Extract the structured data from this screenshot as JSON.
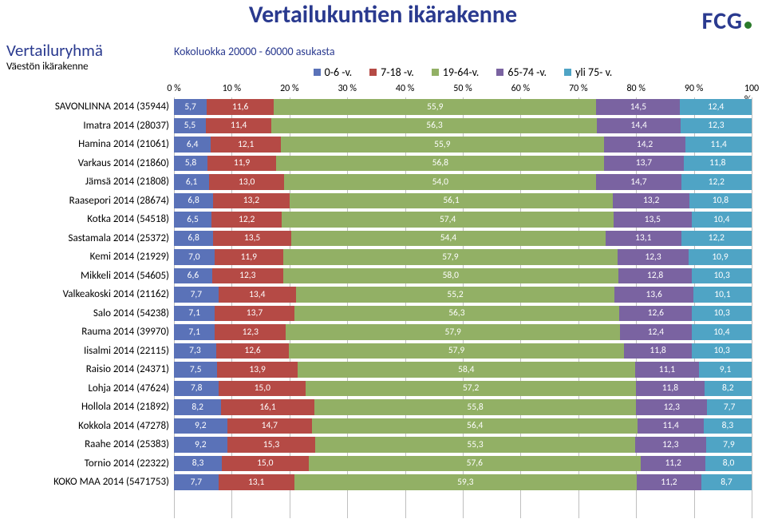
{
  "title": "Vertailukuntien ikärakenne",
  "title_color": "#2a3a8f",
  "logo_text": "FCG",
  "logo_color": "#2a3a8f",
  "logo_dot_color": "#2a7a2a",
  "subheader_group": "Vertailuryhmä",
  "subheader_group_color": "#2a3a8f",
  "subheader_sub": "Väestön ikärakenne",
  "subheader_sub_color": "#000000",
  "sizeclass": "Kokoluokka 20000 - 60000 asukasta",
  "sizeclass_color": "#2a3a8f",
  "legend": [
    {
      "label": "0-6 -v.",
      "color": "#5a72b8"
    },
    {
      "label": "7-18 -v.",
      "color": "#b54a45"
    },
    {
      "label": "19-64-v.",
      "color": "#92b065"
    },
    {
      "label": "65-74 -v.",
      "color": "#7a63a1"
    },
    {
      "label": "yli 75- v.",
      "color": "#4fa4c5"
    }
  ],
  "axis": {
    "ticks": [
      "0 %",
      "10 %",
      "20 %",
      "30 %",
      "40 %",
      "50 %",
      "60 %",
      "70 %",
      "80 %",
      "90 %",
      "100 %"
    ],
    "min": 0,
    "max": 100,
    "grid_color": "#bfbfbf",
    "tick_font": 12
  },
  "series_colors": [
    "#5a72b8",
    "#b54a45",
    "#92b065",
    "#7a63a1",
    "#4fa4c5"
  ],
  "value_font_color": "#ffffff",
  "label_font_size": 13,
  "row_height": 23.5,
  "rows": [
    {
      "label": "SAVONLINNA 2014 (35944)",
      "values": [
        "5,7",
        "11,6",
        "55,9",
        "14,5",
        "12,4"
      ]
    },
    {
      "label": "Imatra 2014 (28037)",
      "values": [
        "5,5",
        "11,4",
        "56,3",
        "14,4",
        "12,3"
      ]
    },
    {
      "label": "Hamina 2014 (21061)",
      "values": [
        "6,4",
        "12,1",
        "55,9",
        "14,2",
        "11,4"
      ]
    },
    {
      "label": "Varkaus 2014 (21860)",
      "values": [
        "5,8",
        "11,9",
        "56,8",
        "13,7",
        "11,8"
      ]
    },
    {
      "label": "Jämsä 2014 (21808)",
      "values": [
        "6,1",
        "13,0",
        "54,0",
        "14,7",
        "12,2"
      ]
    },
    {
      "label": "Raasepori 2014 (28674)",
      "values": [
        "6,8",
        "13,2",
        "56,1",
        "13,2",
        "10,8"
      ]
    },
    {
      "label": "Kotka 2014 (54518)",
      "values": [
        "6,5",
        "12,2",
        "57,4",
        "13,5",
        "10,4"
      ]
    },
    {
      "label": "Sastamala 2014 (25372)",
      "values": [
        "6,8",
        "13,5",
        "54,4",
        "13,1",
        "12,2"
      ]
    },
    {
      "label": "Kemi 2014 (21929)",
      "values": [
        "7,0",
        "11,9",
        "57,9",
        "12,3",
        "10,9"
      ]
    },
    {
      "label": "Mikkeli 2014 (54605)",
      "values": [
        "6,6",
        "12,3",
        "58,0",
        "12,8",
        "10,3"
      ]
    },
    {
      "label": "Valkeakoski 2014 (21162)",
      "values": [
        "7,7",
        "13,4",
        "55,2",
        "13,6",
        "10,1"
      ]
    },
    {
      "label": "Salo 2014 (54238)",
      "values": [
        "7,1",
        "13,7",
        "56,3",
        "12,6",
        "10,3"
      ]
    },
    {
      "label": "Rauma 2014 (39970)",
      "values": [
        "7,1",
        "12,3",
        "57,9",
        "12,4",
        "10,4"
      ]
    },
    {
      "label": "Iisalmi 2014 (22115)",
      "values": [
        "7,3",
        "12,6",
        "57,9",
        "11,8",
        "10,3"
      ]
    },
    {
      "label": "Raisio 2014 (24371)",
      "values": [
        "7,5",
        "13,9",
        "58,4",
        "11,1",
        "9,1"
      ]
    },
    {
      "label": "Lohja 2014 (47624)",
      "values": [
        "7,8",
        "15,0",
        "57,2",
        "11,8",
        "8,2"
      ]
    },
    {
      "label": "Hollola 2014 (21892)",
      "values": [
        "8,2",
        "16,1",
        "55,8",
        "12,3",
        "7,7"
      ]
    },
    {
      "label": "Kokkola 2014 (47278)",
      "values": [
        "9,2",
        "14,7",
        "56,4",
        "11,4",
        "8,3"
      ]
    },
    {
      "label": "Raahe 2014 (25383)",
      "values": [
        "9,2",
        "15,3",
        "55,3",
        "12,3",
        "7,9"
      ]
    },
    {
      "label": "Tornio 2014 (22322)",
      "values": [
        "8,3",
        "15,0",
        "57,6",
        "11,2",
        "8,0"
      ]
    },
    {
      "label": "KOKO MAA 2014 (5471753)",
      "values": [
        "7,7",
        "13,1",
        "59,3",
        "11,2",
        "8,7"
      ]
    }
  ]
}
